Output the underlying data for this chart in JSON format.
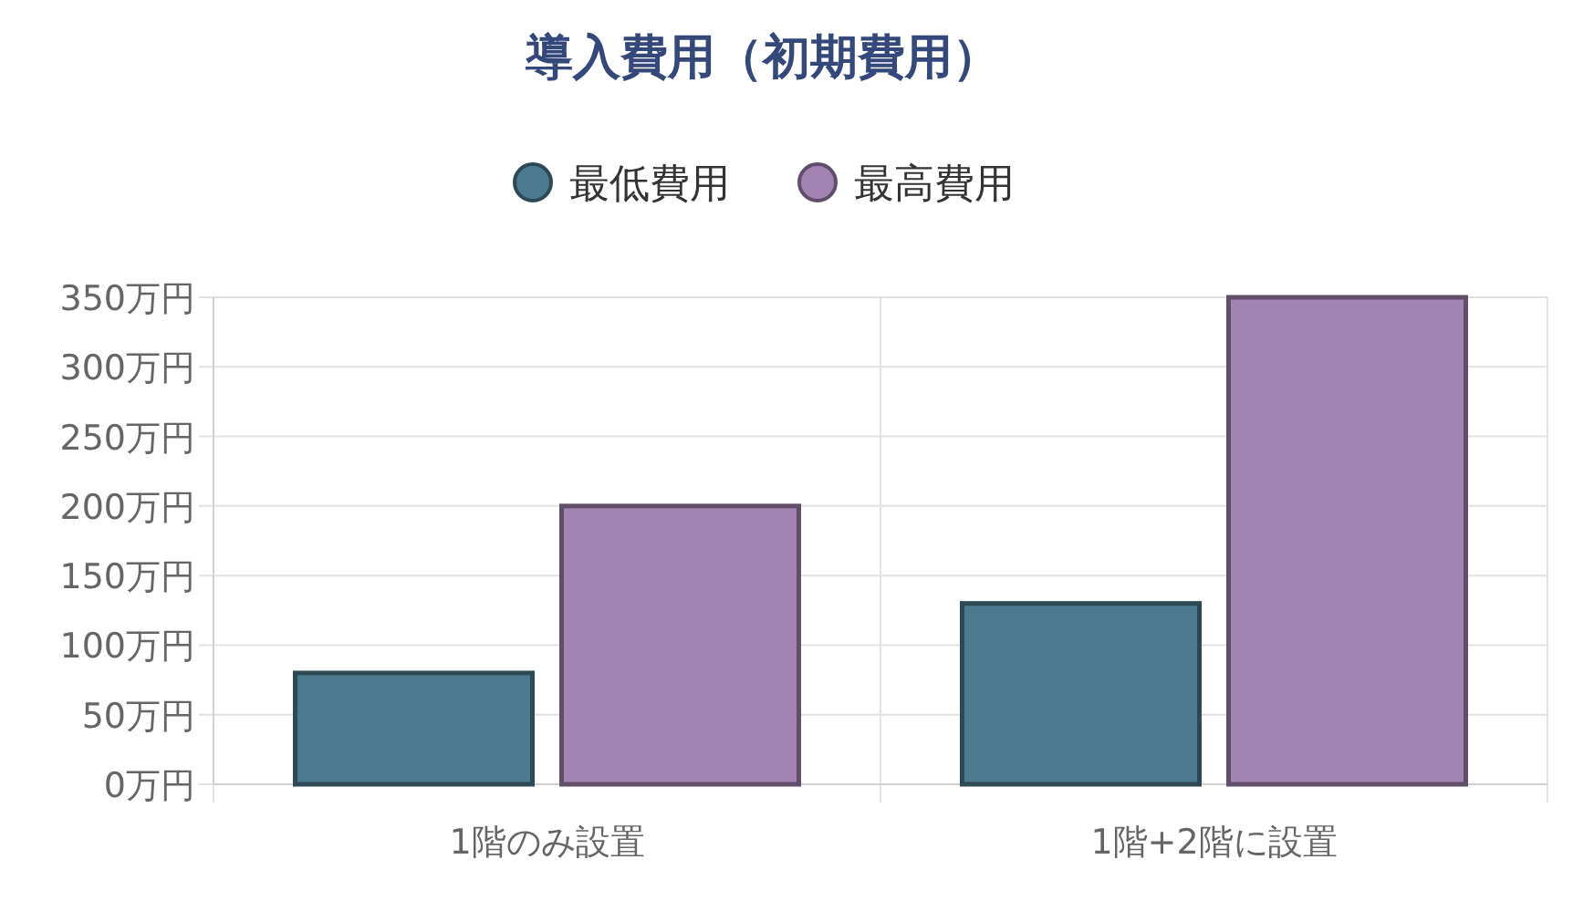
{
  "chart_data": {
    "type": "bar",
    "title": "導入費用（初期費用）",
    "categories": [
      "1階のみ設置",
      "1階+2階に設置"
    ],
    "series": [
      {
        "name": "最低費用",
        "color": "#4b7a8e",
        "values": [
          80,
          130
        ]
      },
      {
        "name": "最高費用",
        "color": "#a283b1",
        "values": [
          200,
          350
        ]
      }
    ],
    "ylim": [
      0,
      350
    ],
    "yticks": [
      {
        "value": 0,
        "label": "0万円"
      },
      {
        "value": 50,
        "label": "50万円"
      },
      {
        "value": 100,
        "label": "100万円"
      },
      {
        "value": 150,
        "label": "150万円"
      },
      {
        "value": 200,
        "label": "200万円"
      },
      {
        "value": 250,
        "label": "250万円"
      },
      {
        "value": 300,
        "label": "300万円"
      },
      {
        "value": 350,
        "label": "350万円"
      }
    ],
    "grid": true,
    "legend": "top"
  }
}
